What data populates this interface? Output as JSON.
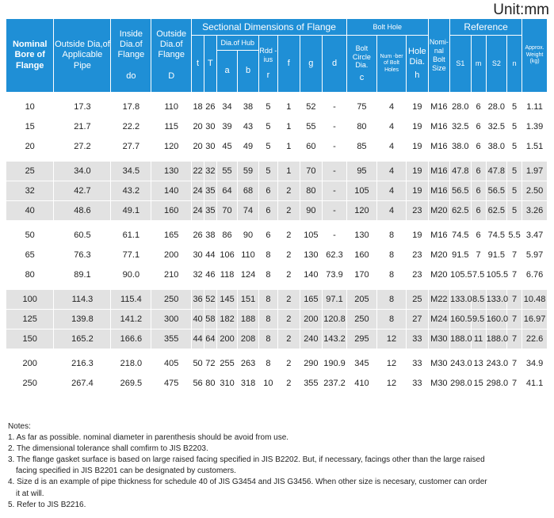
{
  "unit": "Unit:mm",
  "headers": {
    "nominal_bore": "Nominal Bore of Flange",
    "outside_dia_pipe": "Outside Dia,of Applicable Pipe",
    "inside_dia_flange": "Inside Dia.of Flange",
    "inside_dia_symbol": "do",
    "outside_dia_flange": "Outside Dia.of Flange",
    "outside_dia_symbol": "D",
    "sectional": "Sectional Dimensions of Flange",
    "t": "t",
    "T": "T",
    "dia_hub": "Dia.of Hub",
    "a": "a",
    "b": "b",
    "radius": "Rdd -ius",
    "r": "r",
    "f": "f",
    "g": "g",
    "d": "d",
    "bolt_hole": "Bolt Hole",
    "bolt_circle": "Bolt Circle Dia.",
    "bolt_circle_symbol": "c",
    "num_bolt_holes": "Num -ber of Bolt Holes",
    "hole_dia": "Hole Dia.",
    "hole_dia_symbol": "h",
    "nominal_bolt_size": "Nomi- nal Bolt Size",
    "reference": "Reference",
    "s1": "S1",
    "m": "m",
    "s2": "S2",
    "n": "n",
    "approx_weight": "Approx. Weight (kg)"
  },
  "groups": [
    [
      [
        "10",
        "17.3",
        "17.8",
        "110",
        "18",
        "26",
        "34",
        "38",
        "5",
        "1",
        "52",
        "-",
        "75",
        "4",
        "19",
        "M16",
        "28.0",
        "6",
        "28.0",
        "5",
        "1.11"
      ],
      [
        "15",
        "21.7",
        "22.2",
        "115",
        "20",
        "30",
        "39",
        "43",
        "5",
        "1",
        "55",
        "-",
        "80",
        "4",
        "19",
        "M16",
        "32.5",
        "6",
        "32.5",
        "5",
        "1.39"
      ],
      [
        "20",
        "27.2",
        "27.7",
        "120",
        "20",
        "30",
        "45",
        "49",
        "5",
        "1",
        "60",
        "-",
        "85",
        "4",
        "19",
        "M16",
        "38.0",
        "6",
        "38.0",
        "5",
        "1.51"
      ]
    ],
    [
      [
        "25",
        "34.0",
        "34.5",
        "130",
        "22",
        "32",
        "55",
        "59",
        "5",
        "1",
        "70",
        "-",
        "95",
        "4",
        "19",
        "M16",
        "47.8",
        "6",
        "47.8",
        "5",
        "1.97"
      ],
      [
        "32",
        "42.7",
        "43.2",
        "140",
        "24",
        "35",
        "64",
        "68",
        "6",
        "2",
        "80",
        "-",
        "105",
        "4",
        "19",
        "M16",
        "56.5",
        "6",
        "56.5",
        "5",
        "2.50"
      ],
      [
        "40",
        "48.6",
        "49.1",
        "160",
        "24",
        "35",
        "70",
        "74",
        "6",
        "2",
        "90",
        "-",
        "120",
        "4",
        "23",
        "M20",
        "62.5",
        "6",
        "62.5",
        "5",
        "3.26"
      ]
    ],
    [
      [
        "50",
        "60.5",
        "61.1",
        "165",
        "26",
        "38",
        "86",
        "90",
        "6",
        "2",
        "105",
        "-",
        "130",
        "8",
        "19",
        "M16",
        "74.5",
        "6",
        "74.5",
        "5.5",
        "3.47"
      ],
      [
        "65",
        "76.3",
        "77.1",
        "200",
        "30",
        "44",
        "106",
        "110",
        "8",
        "2",
        "130",
        "62.3",
        "160",
        "8",
        "23",
        "M20",
        "91.5",
        "7",
        "91.5",
        "7",
        "5.97"
      ],
      [
        "80",
        "89.1",
        "90.0",
        "210",
        "32",
        "46",
        "118",
        "124",
        "8",
        "2",
        "140",
        "73.9",
        "170",
        "8",
        "23",
        "M20",
        "105.5",
        "7.5",
        "105.5",
        "7",
        "6.76"
      ]
    ],
    [
      [
        "100",
        "114.3",
        "115.4",
        "250",
        "36",
        "52",
        "145",
        "151",
        "8",
        "2",
        "165",
        "97.1",
        "205",
        "8",
        "25",
        "M22",
        "133.0",
        "8.5",
        "133.0",
        "7",
        "10.48"
      ],
      [
        "125",
        "139.8",
        "141.2",
        "300",
        "40",
        "58",
        "182",
        "188",
        "8",
        "2",
        "200",
        "120.8",
        "250",
        "8",
        "27",
        "M24",
        "160.5",
        "9.5",
        "160.0",
        "7",
        "16.97"
      ],
      [
        "150",
        "165.2",
        "166.6",
        "355",
        "44",
        "64",
        "200",
        "208",
        "8",
        "2",
        "240",
        "143.2",
        "295",
        "12",
        "33",
        "M30",
        "188.0",
        "11",
        "188.0",
        "7",
        "22.6"
      ]
    ],
    [
      [
        "200",
        "216.3",
        "218.0",
        "405",
        "50",
        "72",
        "255",
        "263",
        "8",
        "2",
        "290",
        "190.9",
        "345",
        "12",
        "33",
        "M30",
        "243.0",
        "13",
        "243.0",
        "7",
        "34.9"
      ],
      [
        "250",
        "267.4",
        "269.5",
        "475",
        "56",
        "80",
        "310",
        "318",
        "10",
        "2",
        "355",
        "237.2",
        "410",
        "12",
        "33",
        "M30",
        "298.0",
        "15",
        "298.0",
        "7",
        "41.1"
      ]
    ]
  ],
  "notes": [
    "Notes:",
    "1. As far as possible. nominal diameter in parenthesis should be avoid from use.",
    "2. The dimensional tolerance shall comfirm to JIS B2203.",
    "3. The flange gasket surface is based on large raised facing specified in JIS B2202. But, if necessary, facings other than the large raised",
    "facing specified in JIS B2201 can be designated by customers.",
    "4. Size d is an example of pipe thickness for schedule 40 of JIS G3454 and JIS G3456. When other size is necesary, customer can order",
    "it at will.",
    "5. Refer to JIS B2216."
  ]
}
